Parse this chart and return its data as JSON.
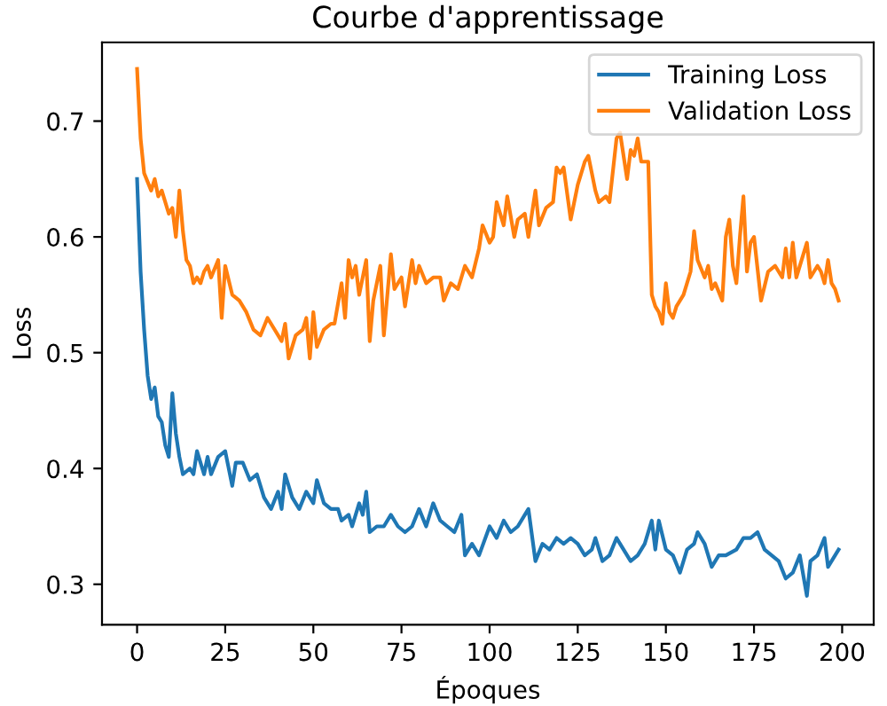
{
  "chart_data": {
    "type": "line",
    "title": "Courbe d'apprentissage",
    "xlabel": "Époques",
    "ylabel": "Loss",
    "xlim": [
      -9.95,
      208.95
    ],
    "xticks": [
      0,
      25,
      50,
      75,
      100,
      125,
      150,
      175,
      200
    ],
    "ylim": [
      0.265,
      0.768
    ],
    "yticks": [
      0.3,
      0.4,
      0.5,
      0.6,
      0.7
    ],
    "grid": false,
    "legend": "top right",
    "marker": "none",
    "line_style": "solid",
    "series": [
      {
        "name": "Training Loss",
        "color": "#1f77b4",
        "x": [
          0,
          1,
          2,
          3,
          4,
          5,
          6,
          7,
          8,
          9,
          10,
          11,
          12,
          13,
          15,
          16,
          17,
          19,
          20,
          21,
          23,
          25,
          27,
          28,
          30,
          32,
          34,
          36,
          38,
          40,
          41,
          42,
          44,
          46,
          48,
          50,
          51,
          53,
          55,
          57,
          58,
          60,
          61,
          63,
          64,
          65,
          66,
          68,
          70,
          72,
          74,
          76,
          78,
          80,
          82,
          84,
          86,
          88,
          90,
          92,
          93,
          95,
          97,
          100,
          102,
          104,
          106,
          108,
          110,
          111,
          113,
          115,
          117,
          119,
          121,
          123,
          125,
          127,
          129,
          130,
          132,
          134,
          136,
          138,
          140,
          142,
          144,
          146,
          147,
          148,
          150,
          152,
          154,
          156,
          158,
          159,
          161,
          163,
          165,
          167,
          170,
          172,
          174,
          176,
          178,
          180,
          182,
          184,
          186,
          188,
          190,
          191,
          193,
          195,
          196,
          198,
          199
        ],
        "values": [
          0.65,
          0.57,
          0.52,
          0.48,
          0.46,
          0.47,
          0.445,
          0.44,
          0.42,
          0.41,
          0.465,
          0.43,
          0.41,
          0.395,
          0.4,
          0.395,
          0.415,
          0.395,
          0.41,
          0.395,
          0.41,
          0.415,
          0.385,
          0.405,
          0.405,
          0.39,
          0.395,
          0.375,
          0.365,
          0.38,
          0.365,
          0.395,
          0.375,
          0.365,
          0.38,
          0.37,
          0.39,
          0.37,
          0.365,
          0.365,
          0.355,
          0.36,
          0.35,
          0.37,
          0.36,
          0.38,
          0.345,
          0.35,
          0.35,
          0.36,
          0.35,
          0.345,
          0.35,
          0.365,
          0.35,
          0.37,
          0.355,
          0.35,
          0.345,
          0.36,
          0.325,
          0.335,
          0.325,
          0.35,
          0.34,
          0.355,
          0.345,
          0.35,
          0.36,
          0.365,
          0.32,
          0.335,
          0.33,
          0.34,
          0.335,
          0.34,
          0.335,
          0.325,
          0.33,
          0.34,
          0.32,
          0.325,
          0.34,
          0.33,
          0.32,
          0.325,
          0.335,
          0.355,
          0.33,
          0.355,
          0.33,
          0.325,
          0.31,
          0.33,
          0.335,
          0.345,
          0.335,
          0.315,
          0.325,
          0.325,
          0.33,
          0.34,
          0.34,
          0.345,
          0.33,
          0.325,
          0.32,
          0.305,
          0.31,
          0.325,
          0.29,
          0.32,
          0.325,
          0.34,
          0.315,
          0.325,
          0.33
        ]
      },
      {
        "name": "Validation Loss",
        "color": "#ff7f0e",
        "x": [
          0,
          1,
          2,
          4,
          5,
          6,
          7,
          8,
          9,
          10,
          11,
          12,
          13,
          14,
          15,
          16,
          17,
          18,
          19,
          20,
          21,
          23,
          24,
          25,
          27,
          29,
          31,
          33,
          35,
          37,
          39,
          41,
          42,
          43,
          45,
          47,
          48,
          49,
          50,
          51,
          53,
          55,
          56,
          58,
          59,
          60,
          61,
          62,
          63,
          65,
          66,
          67,
          69,
          70,
          72,
          73,
          75,
          76,
          78,
          79,
          80,
          82,
          84,
          86,
          87,
          89,
          91,
          93,
          95,
          97,
          98,
          100,
          101,
          102,
          104,
          105,
          107,
          108,
          110,
          111,
          113,
          114,
          116,
          118,
          119,
          120,
          121,
          123,
          125,
          127,
          128,
          130,
          131,
          133,
          134,
          136,
          137,
          139,
          140,
          141,
          142,
          143,
          145,
          146,
          147,
          148,
          149,
          150,
          151,
          152,
          153,
          155,
          157,
          158,
          159,
          161,
          162,
          163,
          164,
          166,
          167,
          168,
          169,
          170,
          171,
          172,
          173,
          174,
          175,
          177,
          179,
          181,
          183,
          184,
          185,
          186,
          187,
          189,
          190,
          191,
          193,
          194,
          195,
          196,
          197,
          198,
          199
        ],
        "values": [
          0.745,
          0.685,
          0.655,
          0.64,
          0.65,
          0.635,
          0.64,
          0.63,
          0.62,
          0.625,
          0.6,
          0.64,
          0.605,
          0.58,
          0.575,
          0.56,
          0.565,
          0.56,
          0.57,
          0.575,
          0.565,
          0.58,
          0.53,
          0.575,
          0.55,
          0.545,
          0.535,
          0.52,
          0.515,
          0.53,
          0.52,
          0.51,
          0.525,
          0.495,
          0.515,
          0.52,
          0.53,
          0.495,
          0.535,
          0.505,
          0.52,
          0.525,
          0.525,
          0.56,
          0.53,
          0.58,
          0.565,
          0.575,
          0.55,
          0.58,
          0.51,
          0.545,
          0.575,
          0.515,
          0.585,
          0.555,
          0.565,
          0.54,
          0.58,
          0.56,
          0.575,
          0.56,
          0.565,
          0.565,
          0.545,
          0.56,
          0.555,
          0.575,
          0.565,
          0.59,
          0.61,
          0.595,
          0.6,
          0.63,
          0.61,
          0.635,
          0.6,
          0.615,
          0.62,
          0.6,
          0.64,
          0.61,
          0.625,
          0.63,
          0.66,
          0.655,
          0.66,
          0.615,
          0.645,
          0.665,
          0.67,
          0.64,
          0.63,
          0.635,
          0.63,
          0.685,
          0.69,
          0.65,
          0.675,
          0.67,
          0.685,
          0.665,
          0.665,
          0.55,
          0.54,
          0.535,
          0.525,
          0.56,
          0.535,
          0.53,
          0.54,
          0.55,
          0.57,
          0.605,
          0.58,
          0.565,
          0.575,
          0.555,
          0.56,
          0.545,
          0.6,
          0.615,
          0.575,
          0.56,
          0.6,
          0.635,
          0.57,
          0.595,
          0.6,
          0.545,
          0.57,
          0.575,
          0.565,
          0.59,
          0.565,
          0.595,
          0.565,
          0.585,
          0.595,
          0.565,
          0.575,
          0.57,
          0.56,
          0.58,
          0.56,
          0.555,
          0.545
        ]
      }
    ]
  }
}
